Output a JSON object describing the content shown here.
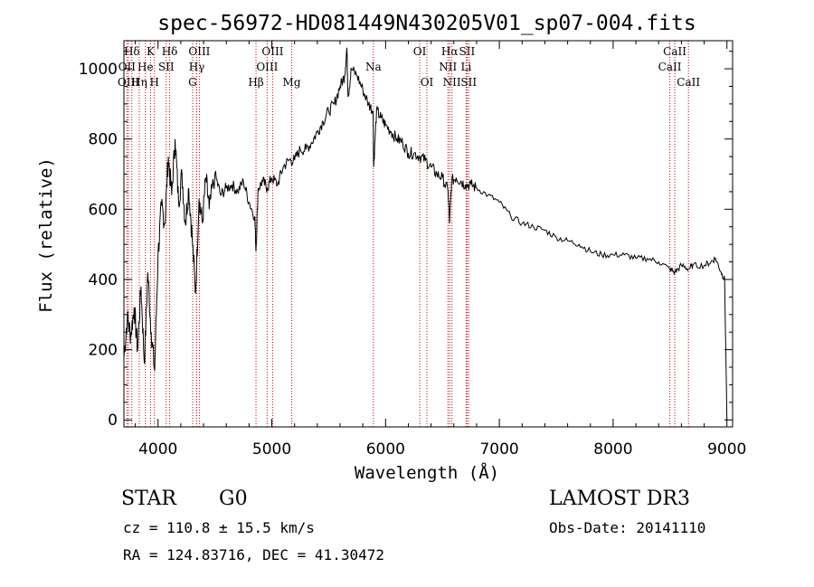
{
  "chart_data": {
    "type": "line",
    "title": "spec-56972-HD081449N430205V01_sp07-004.fits",
    "xlabel": "Wavelength (Å)",
    "ylabel": "Flux (relative)",
    "xlim": [
      3700,
      9050
    ],
    "ylim": [
      -20,
      1080
    ],
    "xticks": [
      4000,
      5000,
      6000,
      7000,
      8000,
      9000
    ],
    "xtick_labels": [
      "4000",
      "5000",
      "6000",
      "7000",
      "8000",
      "9000"
    ],
    "yticks": [
      0,
      200,
      400,
      600,
      800,
      1000
    ],
    "ytick_labels": [
      "0",
      "200",
      "400",
      "600",
      "800",
      "1000"
    ],
    "series": [
      {
        "name": "flux",
        "x": [
          3700,
          3730,
          3760,
          3790,
          3820,
          3850,
          3880,
          3910,
          3940,
          3970,
          4000,
          4030,
          4060,
          4090,
          4120,
          4150,
          4180,
          4210,
          4240,
          4270,
          4300,
          4330,
          4360,
          4390,
          4420,
          4450,
          4500,
          4550,
          4600,
          4650,
          4700,
          4750,
          4800,
          4850,
          4861,
          4880,
          4920,
          4960,
          5000,
          5050,
          5100,
          5150,
          5200,
          5250,
          5300,
          5350,
          5400,
          5450,
          5500,
          5550,
          5600,
          5640,
          5660,
          5670,
          5700,
          5750,
          5800,
          5850,
          5890,
          5895,
          5920,
          5960,
          6000,
          6050,
          6100,
          6150,
          6200,
          6250,
          6300,
          6350,
          6400,
          6450,
          6500,
          6550,
          6563,
          6580,
          6620,
          6660,
          6700,
          6750,
          6800,
          6900,
          7000,
          7100,
          7200,
          7300,
          7400,
          7500,
          7600,
          7700,
          7800,
          7900,
          8000,
          8100,
          8200,
          8300,
          8400,
          8498,
          8542,
          8600,
          8662,
          8700,
          8800,
          8860,
          8900,
          8950,
          8980,
          9000
        ],
        "values": [
          180,
          290,
          240,
          320,
          200,
          380,
          160,
          420,
          250,
          140,
          470,
          610,
          560,
          750,
          640,
          800,
          620,
          700,
          560,
          660,
          520,
          360,
          630,
          560,
          690,
          600,
          700,
          640,
          660,
          670,
          650,
          680,
          620,
          580,
          480,
          660,
          680,
          660,
          690,
          670,
          720,
          740,
          740,
          770,
          770,
          790,
          820,
          850,
          880,
          900,
          950,
          980,
          1060,
          920,
          1000,
          980,
          940,
          900,
          880,
          720,
          880,
          860,
          840,
          820,
          800,
          790,
          760,
          760,
          750,
          740,
          720,
          700,
          690,
          650,
          560,
          680,
          690,
          680,
          670,
          670,
          660,
          640,
          620,
          580,
          560,
          550,
          540,
          520,
          510,
          500,
          480,
          470,
          470,
          470,
          460,
          460,
          450,
          430,
          420,
          440,
          430,
          440,
          440,
          450,
          460,
          420,
          400,
          0
        ]
      }
    ],
    "line_markers": [
      {
        "label": "Hδ",
        "x": 3770,
        "row": 1
      },
      {
        "label": "OII",
        "x": 3727,
        "row": 2
      },
      {
        "label": "OIII",
        "x": 3740,
        "row": 3
      },
      {
        "label": "K",
        "x": 3934,
        "row": 1
      },
      {
        "label": "He",
        "x": 3889,
        "row": 2
      },
      {
        "label": "Hη",
        "x": 3835,
        "row": 3
      },
      {
        "label": "SII",
        "x": 4072,
        "row": 2
      },
      {
        "label": "H",
        "x": 3968,
        "row": 3
      },
      {
        "label": "Hδ",
        "x": 4102,
        "row": 1
      },
      {
        "label": "OIII",
        "x": 4363,
        "row": 1
      },
      {
        "label": "Hγ",
        "x": 4340,
        "row": 2
      },
      {
        "label": "G",
        "x": 4304,
        "row": 3
      },
      {
        "label": "Hβ",
        "x": 4861,
        "row": 3
      },
      {
        "label": "OIII",
        "x": 5007,
        "row": 1
      },
      {
        "label": "OIII",
        "x": 4959,
        "row": 2
      },
      {
        "label": "Mg",
        "x": 5175,
        "row": 3
      },
      {
        "label": "Na",
        "x": 5893,
        "row": 2
      },
      {
        "label": "OI",
        "x": 6300,
        "row": 1
      },
      {
        "label": "OI",
        "x": 6363,
        "row": 3
      },
      {
        "label": "Hα",
        "x": 6563,
        "row": 1
      },
      {
        "label": "NII",
        "x": 6548,
        "row": 2
      },
      {
        "label": "NII",
        "x": 6583,
        "row": 3
      },
      {
        "label": "SII",
        "x": 6716,
        "row": 1
      },
      {
        "label": "Li",
        "x": 6708,
        "row": 2
      },
      {
        "label": "SII",
        "x": 6731,
        "row": 3
      },
      {
        "label": "CaII",
        "x": 8542,
        "row": 1
      },
      {
        "label": "CaII",
        "x": 8498,
        "row": 2
      },
      {
        "label": "CaII",
        "x": 8662,
        "row": 3
      }
    ]
  },
  "info": {
    "object_class": "STAR",
    "subclass": "G0",
    "survey": "LAMOST DR3",
    "redshift_line": "cz = 110.8 ± 15.5 km/s",
    "obs_date_line": "Obs-Date: 20141110",
    "coords_line": "RA = 124.83716, DEC =  41.30472"
  },
  "colors": {
    "line": "#000000",
    "marker": "#cc0000",
    "axes": "#000000"
  }
}
